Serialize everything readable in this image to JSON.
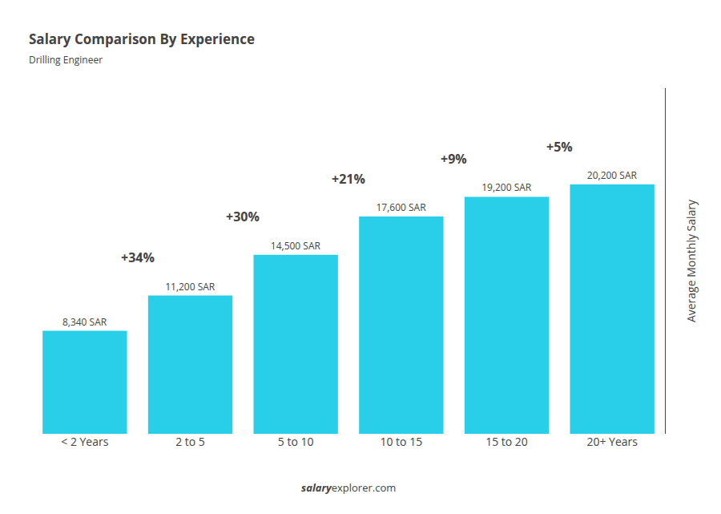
{
  "chart_data": {
    "type": "bar",
    "title": "Salary Comparison By Experience",
    "subtitle": "Drilling Engineer",
    "ylabel": "Average Monthly Salary",
    "footer": [
      "salary",
      "explorer.com"
    ],
    "categories": [
      "< 2 Years",
      "2 to 5",
      "5 to 10",
      "10 to 15",
      "15 to 20",
      "20+ Years"
    ],
    "values": [
      8340,
      11200,
      14500,
      17600,
      19200,
      20200
    ],
    "value_labels": [
      "8,340 SAR",
      "11,200 SAR",
      "14,500 SAR",
      "17,600 SAR",
      "19,200 SAR",
      "20,200 SAR"
    ],
    "data_labels": true,
    "annotations": [
      "+34%",
      "+30%",
      "+21%",
      "+9%",
      "+5%"
    ],
    "color": "#29cfe8",
    "ylim": [
      0,
      28000
    ],
    "yticks": [],
    "grid": false,
    "tick_labels": "x"
  }
}
